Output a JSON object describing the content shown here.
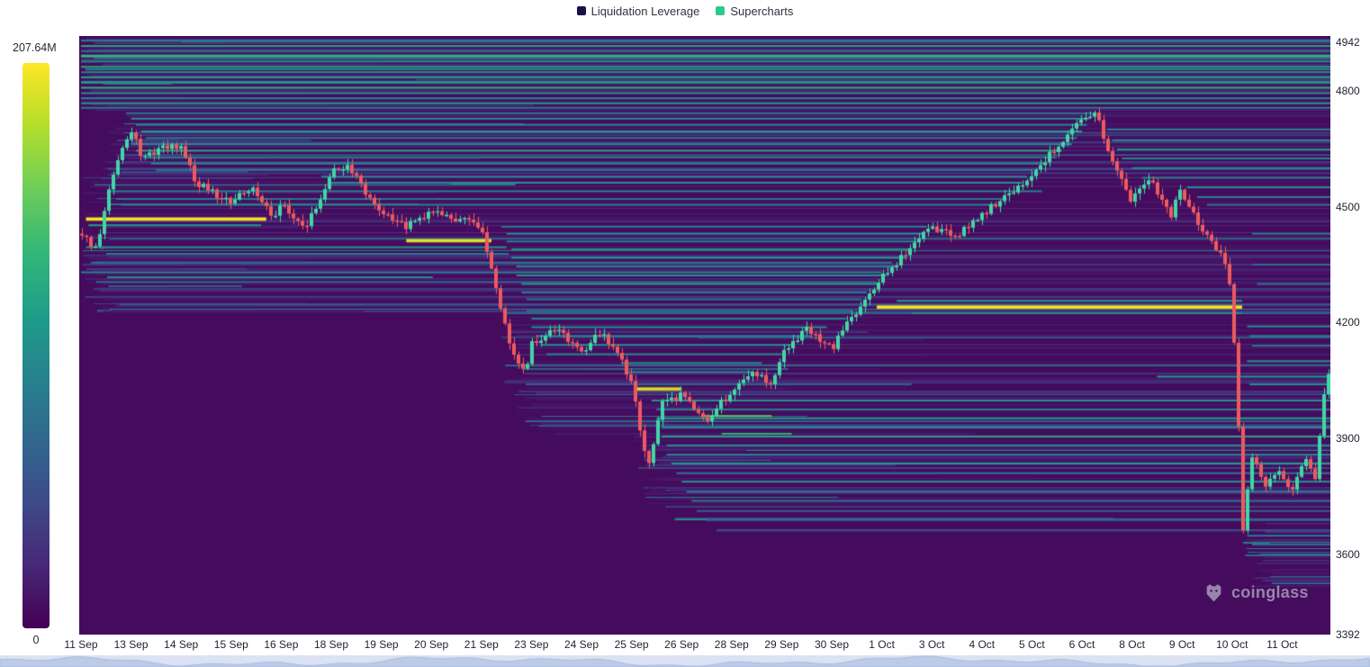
{
  "legend": {
    "items": [
      {
        "label": "Liquidation Leverage",
        "swatch": "#1d1048"
      },
      {
        "label": "Supercharts",
        "swatch": "#2fc98c"
      }
    ]
  },
  "colorbar": {
    "max_label": "207.64M",
    "min_label": "0"
  },
  "watermark": {
    "text": "coinglass"
  },
  "chart_data": {
    "type": "heatmap",
    "title": "Liquidation Leverage heatmap with price candles (Supercharts)",
    "colormap": "viridis",
    "colorbar_range": {
      "min": 0,
      "max": "207.64M"
    },
    "y_axis": {
      "min": 3392,
      "max": 4942,
      "ticks": [
        4942,
        4800,
        4500,
        4200,
        3900,
        3600,
        3392
      ]
    },
    "x_axis": {
      "labels": [
        "11 Sep",
        "13 Sep",
        "14 Sep",
        "15 Sep",
        "16 Sep",
        "18 Sep",
        "19 Sep",
        "20 Sep",
        "21 Sep",
        "23 Sep",
        "24 Sep",
        "25 Sep",
        "26 Sep",
        "28 Sep",
        "29 Sep",
        "30 Sep",
        "1 Oct",
        "3 Oct",
        "4 Oct",
        "5 Oct",
        "6 Oct",
        "8 Oct",
        "9 Oct",
        "10 Oct",
        "11 Oct"
      ]
    },
    "price_series": {
      "unit": "x-label-index",
      "waypoints": [
        [
          0,
          4430
        ],
        [
          0.3,
          4390
        ],
        [
          0.5,
          4530
        ],
        [
          0.8,
          4640
        ],
        [
          1.0,
          4700
        ],
        [
          1.2,
          4620
        ],
        [
          1.5,
          4650
        ],
        [
          2.0,
          4660
        ],
        [
          2.3,
          4560
        ],
        [
          3.0,
          4510
        ],
        [
          3.4,
          4550
        ],
        [
          3.8,
          4470
        ],
        [
          4.0,
          4500
        ],
        [
          4.5,
          4450
        ],
        [
          5.0,
          4590
        ],
        [
          5.3,
          4610
        ],
        [
          6.0,
          4480
        ],
        [
          6.5,
          4450
        ],
        [
          7.0,
          4490
        ],
        [
          7.5,
          4470
        ],
        [
          8.0,
          4450
        ],
        [
          8.3,
          4280
        ],
        [
          8.6,
          4120
        ],
        [
          8.9,
          4070
        ],
        [
          9.0,
          4150
        ],
        [
          9.5,
          4180
        ],
        [
          10.0,
          4120
        ],
        [
          10.4,
          4180
        ],
        [
          10.8,
          4100
        ],
        [
          11.0,
          4050
        ],
        [
          11.2,
          3900
        ],
        [
          11.35,
          3835
        ],
        [
          11.6,
          3990
        ],
        [
          12.0,
          4010
        ],
        [
          12.5,
          3950
        ],
        [
          13.0,
          4020
        ],
        [
          13.4,
          4080
        ],
        [
          13.8,
          4040
        ],
        [
          14.0,
          4120
        ],
        [
          14.5,
          4180
        ],
        [
          15.0,
          4130
        ],
        [
          15.5,
          4230
        ],
        [
          16.0,
          4320
        ],
        [
          16.5,
          4380
        ],
        [
          17.0,
          4450
        ],
        [
          17.5,
          4420
        ],
        [
          18.0,
          4480
        ],
        [
          18.5,
          4530
        ],
        [
          19.0,
          4580
        ],
        [
          19.5,
          4650
        ],
        [
          20.0,
          4720
        ],
        [
          20.3,
          4740
        ],
        [
          20.6,
          4620
        ],
        [
          21.0,
          4520
        ],
        [
          21.4,
          4570
        ],
        [
          21.8,
          4480
        ],
        [
          22.0,
          4540
        ],
        [
          22.4,
          4450
        ],
        [
          22.8,
          4380
        ],
        [
          23.0,
          4300
        ],
        [
          23.15,
          3950
        ],
        [
          23.25,
          3660
        ],
        [
          23.4,
          3860
        ],
        [
          23.7,
          3780
        ],
        [
          24.0,
          3820
        ],
        [
          24.2,
          3760
        ],
        [
          24.5,
          3850
        ],
        [
          24.7,
          3800
        ],
        [
          24.9,
          4050
        ],
        [
          24.96,
          4060
        ]
      ]
    },
    "liquidation_bands_format": "[price, u_start, u_end, intensity_0_to_1, line_px]",
    "liquidation_bands": [
      [
        4930,
        0,
        25,
        0.45,
        2
      ],
      [
        4916,
        0,
        25,
        0.6,
        2
      ],
      [
        4903,
        0,
        25,
        0.4,
        2
      ],
      [
        4890,
        0,
        25,
        0.65,
        3
      ],
      [
        4876,
        0,
        25,
        0.5,
        2
      ],
      [
        4862,
        0,
        25,
        0.6,
        2
      ],
      [
        4848,
        0,
        25,
        0.45,
        2
      ],
      [
        4835,
        0,
        25,
        0.6,
        2
      ],
      [
        4822,
        0,
        25,
        0.5,
        3
      ],
      [
        4808,
        0,
        25,
        0.65,
        2
      ],
      [
        4794,
        0,
        25,
        0.5,
        2
      ],
      [
        4781,
        0,
        25,
        0.45,
        2
      ],
      [
        4768,
        0,
        25,
        0.55,
        2
      ],
      [
        4756,
        0,
        25,
        0.4,
        2
      ],
      [
        4742,
        0.9,
        20.2,
        0.4,
        2
      ],
      [
        4728,
        1.0,
        20.15,
        0.5,
        2
      ],
      [
        4712,
        1.1,
        20.1,
        0.45,
        2
      ],
      [
        4695,
        1.2,
        20.0,
        0.55,
        2
      ],
      [
        4678,
        1.3,
        19.9,
        0.4,
        2
      ],
      [
        4662,
        1.0,
        19.8,
        0.5,
        2
      ],
      [
        4645,
        1.1,
        19.6,
        0.6,
        2
      ],
      [
        4628,
        1.3,
        19.5,
        0.45,
        2
      ],
      [
        4612,
        1.4,
        19.3,
        0.5,
        2
      ],
      [
        4595,
        1.5,
        19.0,
        0.4,
        2
      ],
      [
        4578,
        4.8,
        18.9,
        0.45,
        2
      ],
      [
        4562,
        5.0,
        18.8,
        0.5,
        2
      ],
      [
        4540,
        0.6,
        19.2,
        0.45,
        2
      ],
      [
        4520,
        0.7,
        18.5,
        0.4,
        2
      ],
      [
        4505,
        0.8,
        18.3,
        0.45,
        2
      ],
      [
        4700,
        20.5,
        25,
        0.45,
        2
      ],
      [
        4672,
        20.6,
        25,
        0.5,
        2
      ],
      [
        4648,
        20.7,
        25,
        0.55,
        2
      ],
      [
        4625,
        20.8,
        25,
        0.45,
        2
      ],
      [
        4600,
        21.0,
        25,
        0.5,
        2
      ],
      [
        4575,
        21.2,
        25,
        0.45,
        2
      ],
      [
        4550,
        22.1,
        25,
        0.5,
        2
      ],
      [
        4525,
        22.3,
        25,
        0.45,
        2
      ],
      [
        4505,
        22.5,
        25,
        0.4,
        2
      ],
      [
        4468,
        0.1,
        3.7,
        1.0,
        3
      ],
      [
        4452,
        0.15,
        3.6,
        0.55,
        2
      ],
      [
        4412,
        6.5,
        8.2,
        0.95,
        3
      ],
      [
        4240,
        15.9,
        23.2,
        1.0,
        3
      ],
      [
        4256,
        16.3,
        23.2,
        0.55,
        2
      ],
      [
        4224,
        16.6,
        23.2,
        0.5,
        2
      ],
      [
        4028,
        11.1,
        12.0,
        0.95,
        3
      ],
      [
        4395,
        0.1,
        8.5,
        0.5,
        2
      ],
      [
        4378,
        0.5,
        8.55,
        0.4,
        2
      ],
      [
        4355,
        0.2,
        16.2,
        0.4,
        2
      ],
      [
        4330,
        0,
        16.0,
        0.45,
        2
      ],
      [
        4305,
        0.3,
        15.9,
        0.35,
        2
      ],
      [
        4448,
        8.4,
        16.9,
        0.4,
        2
      ],
      [
        4430,
        8.5,
        16.8,
        0.5,
        2
      ],
      [
        4410,
        8.5,
        16.7,
        0.45,
        2
      ],
      [
        4390,
        8.6,
        16.6,
        0.5,
        2
      ],
      [
        4368,
        8.6,
        16.5,
        0.55,
        2
      ],
      [
        4345,
        8.7,
        16.3,
        0.45,
        2
      ],
      [
        4322,
        8.7,
        16.1,
        0.5,
        2
      ],
      [
        4300,
        8.8,
        15.9,
        0.55,
        2
      ],
      [
        4278,
        8.8,
        15.7,
        0.45,
        2
      ],
      [
        4260,
        8.9,
        15.6,
        0.4,
        2
      ],
      [
        4230,
        8.9,
        15.4,
        0.4,
        2
      ],
      [
        4210,
        9.0,
        15.3,
        0.45,
        2
      ],
      [
        4188,
        9.0,
        14.9,
        0.5,
        2
      ],
      [
        4165,
        9.1,
        14.6,
        0.45,
        2
      ],
      [
        4142,
        9.2,
        14.2,
        0.5,
        2
      ],
      [
        4118,
        9.3,
        14.0,
        0.45,
        2
      ],
      [
        4095,
        10.8,
        13.6,
        0.5,
        2
      ],
      [
        4072,
        10.9,
        13.4,
        0.45,
        2
      ],
      [
        3998,
        11.4,
        25,
        0.5,
        2
      ],
      [
        3975,
        11.5,
        25,
        0.45,
        2
      ],
      [
        3952,
        11.5,
        25,
        0.55,
        2
      ],
      [
        3958,
        12.4,
        13.8,
        0.75,
        2
      ],
      [
        3928,
        11.6,
        25,
        0.45,
        2
      ],
      [
        3912,
        12.8,
        14.2,
        0.65,
        2
      ],
      [
        3905,
        11.6,
        25,
        0.6,
        2
      ],
      [
        3882,
        11.7,
        25,
        0.5,
        2
      ],
      [
        3858,
        11.7,
        25,
        0.45,
        2
      ],
      [
        3835,
        11.8,
        25,
        0.55,
        2
      ],
      [
        3810,
        11.9,
        25,
        0.4,
        2
      ],
      [
        3788,
        12.0,
        25,
        0.5,
        2
      ],
      [
        3762,
        12.1,
        25,
        0.45,
        2
      ],
      [
        3738,
        12.2,
        25,
        0.4,
        2
      ],
      [
        3712,
        12.3,
        25,
        0.3,
        2
      ],
      [
        3688,
        12.5,
        25,
        0.25,
        2
      ],
      [
        3662,
        12.7,
        25,
        0.25,
        2
      ],
      [
        4430,
        23.4,
        25,
        0.4,
        2
      ],
      [
        4350,
        23.4,
        25,
        0.35,
        2
      ],
      [
        4300,
        23.5,
        25,
        0.4,
        2
      ],
      [
        4190,
        23.3,
        25,
        0.5,
        2
      ],
      [
        4165,
        23.35,
        25,
        0.45,
        2
      ],
      [
        4140,
        23.4,
        25,
        0.4,
        2
      ],
      [
        4100,
        23.3,
        25,
        0.5,
        2
      ],
      [
        4060,
        21.5,
        25,
        0.55,
        2
      ],
      [
        4040,
        23.35,
        25,
        0.5,
        2
      ],
      [
        3648,
        23.3,
        25,
        0.4,
        2
      ],
      [
        3625,
        23.4,
        25,
        0.35,
        2
      ],
      [
        3605,
        23.5,
        25,
        0.3,
        1
      ]
    ],
    "candles": {
      "count": 278,
      "up_color": "#41d7a4",
      "down_color": "#ee5a5e"
    },
    "background_level": 0.03,
    "texture": {
      "count": 330,
      "seed": 7,
      "threshold": 160
    }
  }
}
